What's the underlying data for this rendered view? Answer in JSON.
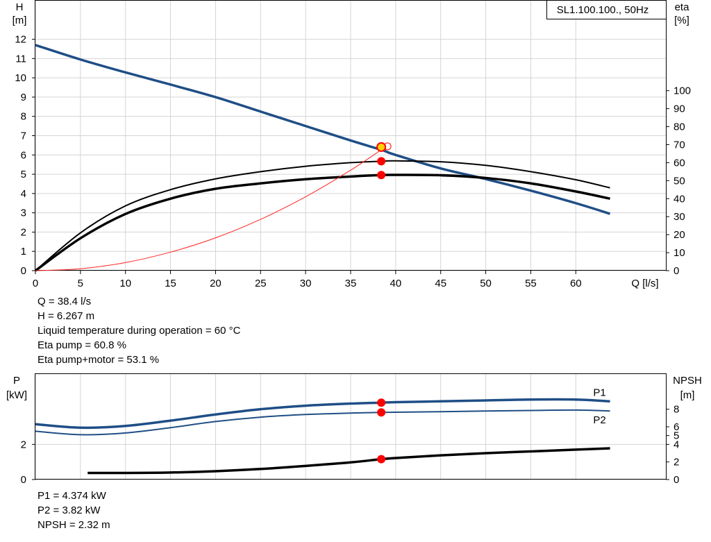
{
  "colors": {
    "head_curve": "#1f4e86",
    "power_curve": "#1f4e86",
    "eff_curve": "#000000",
    "system_curve": "#ff2020",
    "marker": "#ff0000",
    "grid": "#d4d4d4"
  },
  "upper": {
    "legend_box": "SL1.100.100., 50Hz",
    "left_axis": {
      "label_line1": "H",
      "label_line2": "[m]"
    },
    "right_axis": {
      "label_line1": "eta",
      "label_line2": "[%]"
    },
    "x_axis": {
      "label": "Q [l/s]"
    },
    "info_lines": [
      "Q = 38.4 l/s",
      "H = 6.267 m",
      "Liquid temperature during operation = 60 °C",
      "Eta pump = 60.8 %",
      "Eta pump+motor = 53.1 %"
    ]
  },
  "lower": {
    "left_axis": {
      "label_line1": "P",
      "label_line2": "[kW]"
    },
    "right_axis": {
      "label_line1": "NPSH",
      "label_line2": "[m]"
    },
    "info_lines": [
      "P1 = 4.374 kW",
      "P2 = 3.82 kW",
      "NPSH = 2.32 m"
    ]
  },
  "chart_data": [
    {
      "type": "line",
      "xlabel": "Q [l/s]",
      "ylabel": "H [m]",
      "y2label": "eta [%]",
      "xlim": [
        0,
        70
      ],
      "ylim": [
        0,
        14
      ],
      "y2lim": [
        0,
        100
      ],
      "x_ticks": [
        0,
        5,
        10,
        15,
        20,
        25,
        30,
        35,
        40,
        45,
        50,
        55,
        60
      ],
      "y_ticks": [
        0,
        1,
        2,
        3,
        4,
        5,
        6,
        7,
        8,
        9,
        10,
        11,
        12
      ],
      "y2_ticks": [
        0,
        10,
        20,
        30,
        40,
        50,
        60,
        70,
        80,
        90,
        100
      ],
      "grid": true,
      "legend": "top-right",
      "series": [
        {
          "axis": "left",
          "x": [
            0,
            5,
            10,
            15,
            20,
            25,
            30,
            35,
            38.4,
            40,
            45,
            50,
            55,
            60,
            63.8
          ],
          "y": [
            11.7,
            10.95,
            10.28,
            9.65,
            9.0,
            8.25,
            7.5,
            6.75,
            6.267,
            6.0,
            5.3,
            4.75,
            4.15,
            3.5,
            2.95
          ]
        },
        {
          "axis": "right",
          "x": [
            0,
            5,
            10,
            15,
            20,
            25,
            30,
            35,
            38.4,
            40,
            45,
            50,
            55,
            60,
            63.8
          ],
          "y": [
            0,
            21,
            36,
            45,
            51,
            55,
            58,
            60,
            60.8,
            61,
            60.5,
            58.5,
            55,
            50.5,
            46
          ]
        },
        {
          "axis": "right",
          "x": [
            0,
            5,
            10,
            15,
            20,
            25,
            30,
            35,
            38.4,
            40,
            45,
            50,
            55,
            60,
            63.8
          ],
          "y": [
            0,
            18,
            31.5,
            40,
            45.5,
            48.5,
            50.8,
            52.3,
            53.1,
            53.2,
            53,
            51.5,
            48.5,
            44,
            40
          ]
        },
        {
          "axis": "left",
          "x": [
            0,
            5,
            10,
            15,
            20,
            25,
            30,
            35,
            38.4
          ],
          "y": [
            0,
            0.1,
            0.42,
            0.96,
            1.7,
            2.66,
            3.83,
            5.21,
            6.267
          ]
        }
      ],
      "operating_point": {
        "Q": 38.4,
        "H": 6.267,
        "eta_pump": 60.8,
        "eta_pump_motor": 53.1
      }
    },
    {
      "type": "line",
      "ylabel": "P [kW]",
      "y2label": "NPSH [m]",
      "xlim": [
        0,
        70
      ],
      "ylim": [
        0,
        6
      ],
      "y_ticks": [
        0,
        2
      ],
      "y2_ticks": [
        0,
        2,
        4,
        5,
        6,
        8
      ],
      "y2lim": [
        0,
        12
      ],
      "grid": true,
      "series": [
        {
          "name": "P1",
          "axis": "left",
          "x": [
            0,
            5,
            10,
            15,
            20,
            25,
            30,
            35,
            38.4,
            40,
            45,
            50,
            55,
            60,
            63.8
          ],
          "y": [
            3.15,
            2.95,
            3.05,
            3.35,
            3.7,
            4.0,
            4.2,
            4.32,
            4.374,
            4.4,
            4.45,
            4.5,
            4.55,
            4.55,
            4.45
          ]
        },
        {
          "name": "P2",
          "axis": "left",
          "x": [
            0,
            5,
            10,
            15,
            20,
            25,
            30,
            35,
            38.4,
            40,
            45,
            50,
            55,
            60,
            63.8
          ],
          "y": [
            2.75,
            2.55,
            2.65,
            2.95,
            3.3,
            3.55,
            3.7,
            3.78,
            3.82,
            3.83,
            3.86,
            3.9,
            3.93,
            3.95,
            3.9
          ]
        },
        {
          "name": "NPSH",
          "axis": "right",
          "x": [
            5.8,
            10,
            15,
            20,
            25,
            30,
            35,
            38.4,
            40,
            45,
            50,
            55,
            60,
            63.8
          ],
          "y": [
            0.75,
            0.75,
            0.8,
            0.95,
            1.2,
            1.55,
            1.95,
            2.32,
            2.45,
            2.75,
            3.0,
            3.2,
            3.4,
            3.55
          ]
        }
      ],
      "operating_point": {
        "Q": 38.4,
        "P1": 4.374,
        "P2": 3.82,
        "NPSH": 2.32
      }
    }
  ]
}
